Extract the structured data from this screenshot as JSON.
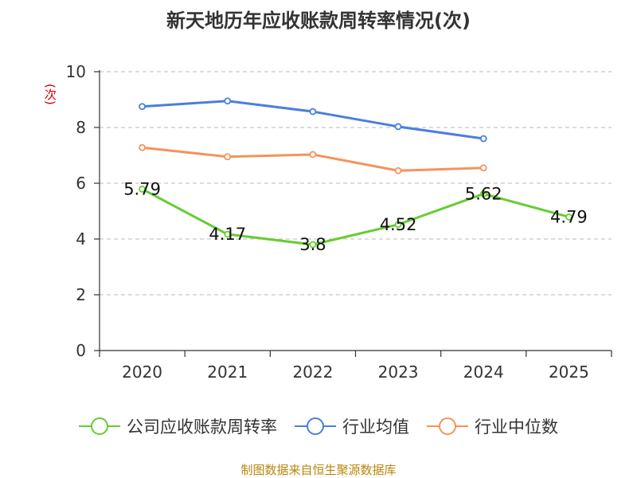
{
  "chart_data": {
    "type": "line",
    "title": "新天地历年应收账款周转率情况(次)",
    "ylabel": "(次)",
    "xlabel": "",
    "categories": [
      "2020",
      "2021",
      "2022",
      "2023",
      "2024",
      "2025"
    ],
    "ylim": [
      0,
      10
    ],
    "yticks": [
      0,
      2,
      4,
      6,
      8,
      10
    ],
    "grid": true,
    "legend_position": "bottom",
    "series": [
      {
        "name": "公司应收账款周转率",
        "color": "#66cc33",
        "values": [
          5.79,
          4.17,
          3.8,
          4.52,
          5.62,
          4.79
        ],
        "data_labels": [
          "5.79",
          "4.17",
          "3.8",
          "4.52",
          "5.62",
          "4.79"
        ]
      },
      {
        "name": "行业均值",
        "color": "#4a7fdb",
        "values": [
          8.75,
          8.95,
          8.57,
          8.03,
          7.6,
          null
        ]
      },
      {
        "name": "行业中位数",
        "color": "#f5935a",
        "values": [
          7.28,
          6.95,
          7.03,
          6.45,
          6.55,
          null
        ]
      }
    ],
    "source": "制图数据来自恒生聚源数据库"
  }
}
